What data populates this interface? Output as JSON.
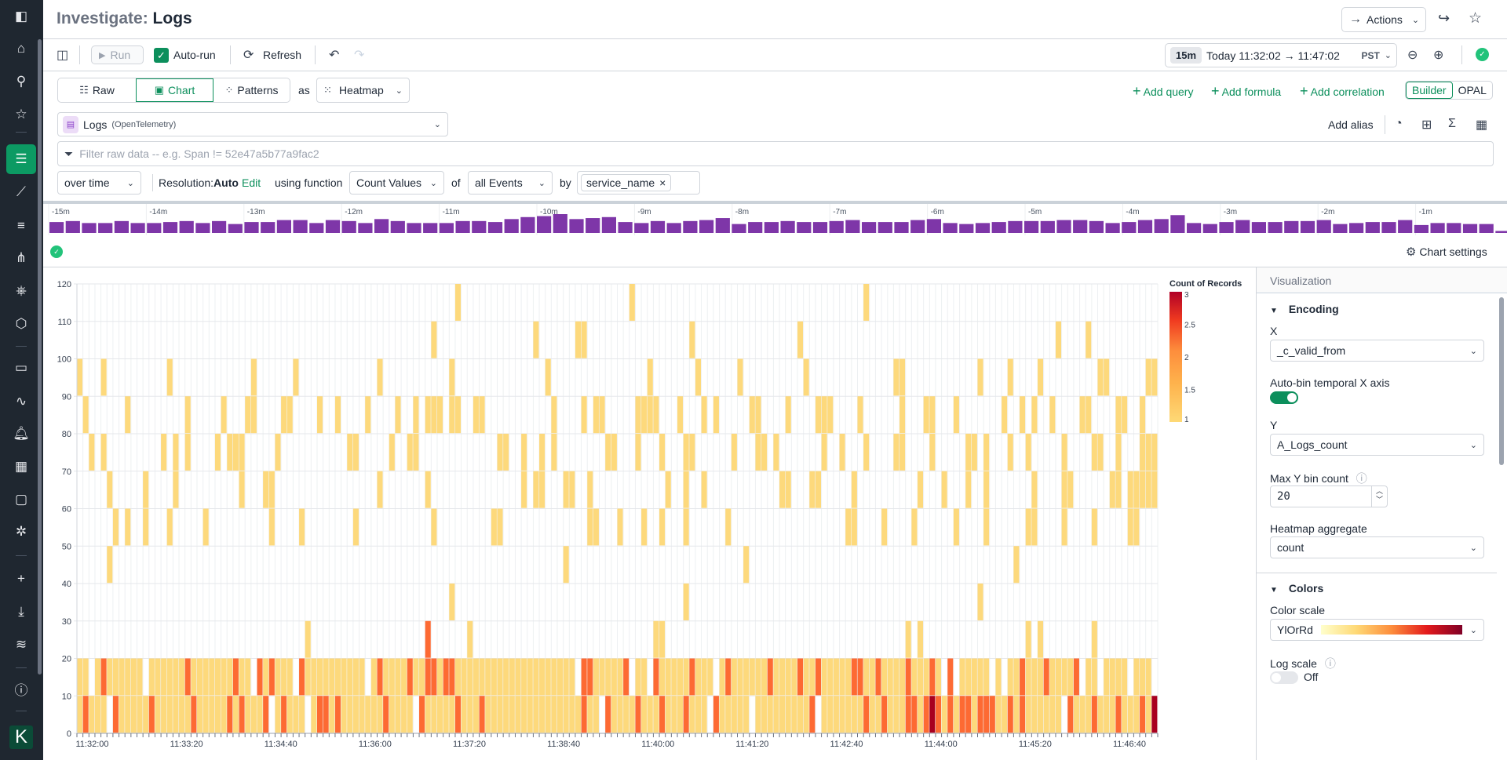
{
  "header": {
    "title_prefix": "Investigate:",
    "title": "Logs",
    "actions_label": "Actions"
  },
  "toolbar": {
    "run": "Run",
    "auto_run": "Auto-run",
    "refresh": "Refresh",
    "time_pill": "15m",
    "time_range": "Today 11:32:02 → 11:47:02",
    "timezone": "PST"
  },
  "view": {
    "tabs": [
      "Raw",
      "Chart",
      "Patterns"
    ],
    "active_tab": "Chart",
    "as_label": "as",
    "viz_type": "Heatmap",
    "add_query": "Add query",
    "add_formula": "Add formula",
    "add_correlation": "Add correlation",
    "modes": [
      "Builder",
      "OPAL"
    ],
    "active_mode": "Builder"
  },
  "query": {
    "dataset": "Logs",
    "dataset_sub": "(OpenTelemetry)",
    "add_alias": "Add alias",
    "filter_placeholder": "Filter raw data -- e.g. Span != 52e47a5b77a9fac2",
    "over_time": "over time",
    "resolution_label": "Resolution:",
    "resolution_value": "Auto",
    "edit": "Edit",
    "using_function": "using function",
    "function": "Count Values",
    "of": "of",
    "events": "all Events",
    "by": "by",
    "group_by": "service_name"
  },
  "histogram": {
    "ticks": [
      "-15m",
      "-14m",
      "-13m",
      "-12m",
      "-11m",
      "-10m",
      "-9m",
      "-8m",
      "-7m",
      "-6m",
      "-5m",
      "-4m",
      "-3m",
      "-2m",
      "-1m"
    ],
    "values": [
      11,
      12,
      10,
      10,
      12,
      10,
      10,
      11,
      12,
      10,
      12,
      9,
      11,
      11,
      13,
      13,
      10,
      13,
      12,
      10,
      14,
      12,
      10,
      10,
      10,
      12,
      12,
      11,
      14,
      16,
      17,
      19,
      14,
      15,
      16,
      11,
      10,
      12,
      10,
      12,
      13,
      15,
      9,
      11,
      11,
      12,
      11,
      11,
      12,
      13,
      11,
      11,
      11,
      13,
      14,
      10,
      9,
      10,
      11,
      12,
      12,
      12,
      13,
      13,
      12,
      10,
      11,
      13,
      14,
      18,
      10,
      9,
      11,
      13,
      11,
      11,
      12,
      12,
      13,
      9,
      10,
      11,
      11,
      13,
      8,
      10,
      10,
      9,
      9,
      2
    ],
    "bar_color": "#7e36a8"
  },
  "chart_settings": "Chart settings",
  "chart_data": {
    "type": "heatmap",
    "title": "",
    "xlabel": "",
    "ylabel": "",
    "xlim": [
      "11:31:47",
      "11:47:04"
    ],
    "ylim": [
      0,
      120
    ],
    "y_ticks": [
      0,
      10,
      20,
      30,
      40,
      50,
      60,
      70,
      80,
      90,
      100,
      110,
      120
    ],
    "x_ticks": [
      "11:32:00",
      "11:33:20",
      "11:34:40",
      "11:36:00",
      "11:37:20",
      "11:38:40",
      "11:40:00",
      "11:41:20",
      "11:42:40",
      "11:44:00",
      "11:45:20",
      "11:46:40"
    ],
    "bin_seconds": 5,
    "y_bin": 10,
    "legend": {
      "title": "Count of Records",
      "ticks": [
        3,
        2.5,
        2,
        1.5,
        1
      ],
      "range": [
        1,
        3
      ],
      "position": "right"
    },
    "cell_colors": {
      "1": "#fdd97c",
      "2": "#fd6a33",
      "3": "#a8001f"
    },
    "rows_bottom_to_top": [
      "1211102111 1121111112 1111121211 1201211101 2212111111 1211110211 1112111211 1111111111 1111211021 1112111211 1211102111 1101111111 1120111111 1211211122 1232121221 2221121211 1111021112 1112111213",
      "1101211111 1011111121 1111112110 2121110211 1111111101 2111121122 1221111111 1111111111 1110221111 1201102111 1121110121 1111121111 2112111112 2112111121 1121020111 1101011211 1211112011 0111101110",
      "0000000000 0000000000 0000000000 0000000010 0000000000 0000000020 0000010000 0000000000 0000000000 0000001100 0000000000 0000000000 0000000000 0000000010 1000000000 0000000010 1000000001 0000000000",
      "0000000000 0000000000 0000000000 0000000000 0000000000 0000000000 0010000000 0000000000 0000000000 0000000000 0100000000 0000000000 0000000000 0000000000 0000000000 1000000000 0000000000 0000000000",
      "0000010000 0000000000 0000000000 0000000000 0000000000 0000000000 0000000000 0000000000 0100000000 0000000000 0000000000 0100000000 0000000000 0000000000 0000000000 0000001000 0000000000 0000000000",
      "0000001010 0100010000 0100000000 0010000100 0000001000 0000000001 0000000001 1000000000 0000011000 1000100100 0100000010 0000000000 0000000011 0000100001 0000001000 0100000011 0000100001 0000011000",
      "0000010000 0100001000 0000000100 0110000000 0000000000 1000000010 0000000000 0000101100 0110010000 0000000010 0100100000 0000000110 0011000001 0000000000 1000100010 0100000001 0000110000 0011011111",
      "0010100000 0000101010 0001011100 0001000000 0000011000 0010011000 0000000000 1100100101 0000000011 0001000100 0110000001 0001101000 0000100100 0100001100 0010000011 0100010010 0000100001 1001000111",
      "0100000010 0000000010 0000100011 0000110000 1001000010 0001001011 1011001100 0000000001 0000101100 0001111000 1000101000 0011000010 0001110000 1000000100 0110001000 0000100101 0010000110 0001100100",
      "1000100000 0000010000 0000000001 0000001000 0000000000 1000000000 0010000000 0000000010 0000000000 0000010000 0001000000 1000000000 0100000000 0000001100 0000000000 1000010000 1000000000 1100000011",
      "0000000000 0000000000 0000000000 0000000000 0000000000 0000000001 0000000000 0000001000 0001100000 0000000000 0010000000 0000000000 1000000000 0000000000 0000000000 0000000000 0001000010 0000000000",
      "0000000000 0000000000 0000000000 0000000000 0000000000 0000000000 0001000000 0000000000 0000000000 0010000000 0000000000 0000000000 0000000000 0100000000 0000000000 0000000000 0000000000 0000000000"
    ]
  },
  "viz_panel": {
    "title": "Visualization",
    "encoding": "Encoding",
    "x_label": "X",
    "x_value": "_c_valid_from",
    "auto_bin": "Auto-bin temporal X axis",
    "auto_bin_on": true,
    "y_label": "Y",
    "y_value": "A_Logs_count",
    "max_y_label": "Max Y bin count",
    "max_y_value": "20",
    "agg_label": "Heatmap aggregate",
    "agg_value": "count",
    "colors": "Colors",
    "color_scale_label": "Color scale",
    "color_scale": "YlOrRd",
    "log_scale": "Log scale",
    "log_scale_state": "Off"
  }
}
